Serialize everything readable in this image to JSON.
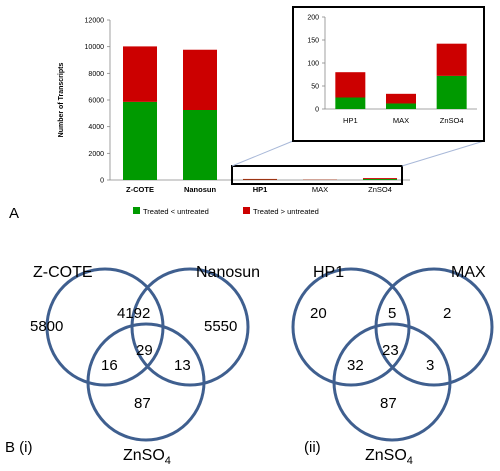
{
  "panels": {
    "a": "A",
    "b_i": "B (i)",
    "b_ii": "(ii)"
  },
  "colors": {
    "down": "#009a00",
    "up": "#cc0000",
    "circle": "#3f5f8f"
  },
  "chart_data": [
    {
      "type": "bar",
      "stacked": true,
      "categories": [
        "Z-COTE",
        "Nanosun",
        "HP1",
        "MAX",
        "ZnSO4"
      ],
      "series": [
        {
          "name": "Treated < untreated",
          "values": [
            5860,
            5250,
            25,
            12,
            72
          ]
        },
        {
          "name": "Treated > untreated",
          "values": [
            4160,
            4520,
            55,
            21,
            70
          ]
        }
      ],
      "ylabel": "Number of Transcripts",
      "ylim": [
        0,
        12000
      ],
      "yticks": [
        0,
        2000,
        4000,
        6000,
        8000,
        10000,
        12000
      ],
      "legend": "bottom",
      "grid": false
    },
    {
      "type": "bar",
      "stacked": true,
      "inset": true,
      "categories": [
        "HP1",
        "MAX",
        "ZnSO4"
      ],
      "series": [
        {
          "name": "Treated < untreated",
          "values": [
            25,
            12,
            72
          ]
        },
        {
          "name": "Treated > untreated",
          "values": [
            55,
            21,
            70
          ]
        }
      ],
      "ylim": [
        0,
        200
      ],
      "yticks": [
        0,
        50,
        100,
        150,
        200
      ],
      "grid": false
    }
  ],
  "venn_i": {
    "labels": {
      "top_left": "Z-COTE",
      "top_right": "Nanosun",
      "bottom_name": "ZnSO",
      "bottom_sub": "4"
    },
    "regions": {
      "only_a": "5800",
      "a_b": "4192",
      "only_b": "5550",
      "a_c": "16",
      "abc": "29",
      "b_c": "13",
      "only_c": "87"
    }
  },
  "venn_ii": {
    "labels": {
      "top_left": "HP1",
      "top_right": "MAX",
      "bottom_name": "ZnSO",
      "bottom_sub": "4"
    },
    "regions": {
      "only_a": "20",
      "a_b": "5",
      "only_b": "2",
      "a_c": "32",
      "abc": "23",
      "b_c": "3",
      "only_c": "87"
    }
  }
}
